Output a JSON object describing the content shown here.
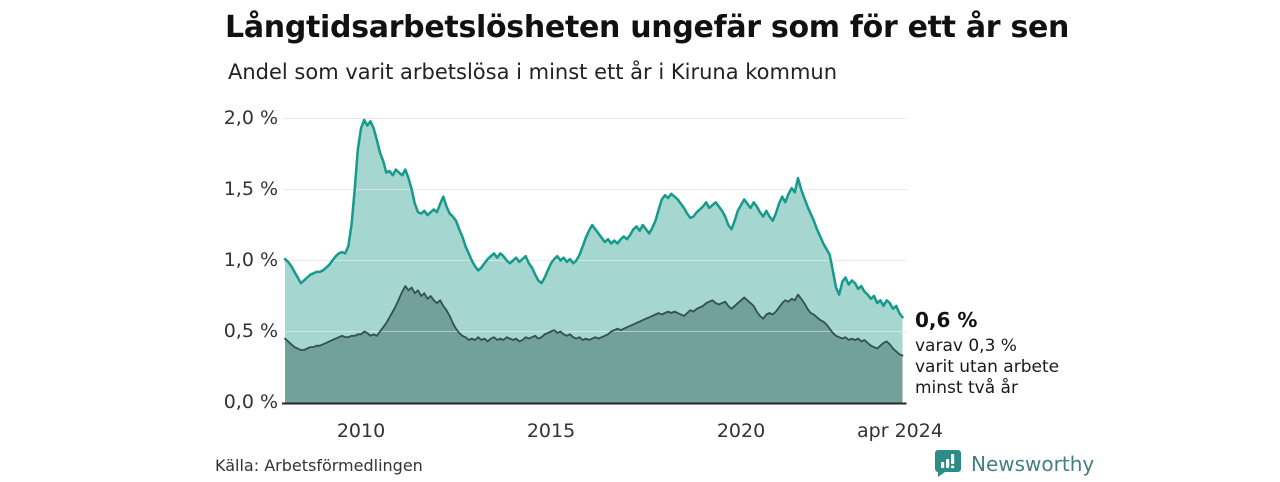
{
  "page": {
    "title": "Långtidsarbetslösheten ungefär som för ett år sen",
    "subtitle": "Andel som varit arbetslösa i minst ett år i Kiruna kommun",
    "source": "Källa: Arbetsförmedlingen",
    "brand": "Newsworthy"
  },
  "annotation": {
    "headline": "0,6 %",
    "line1": "varav 0,3 %",
    "line2": "varit utan arbete",
    "line3": "minst två år"
  },
  "colors": {
    "line_total": "#159a8c",
    "fill_total": "#a6d6d0",
    "line_two_year": "#33514d",
    "fill_two_year": "#72a09a",
    "gridline": "#d8d8d8",
    "baseline": "#262626",
    "brand_teal": "#2e8c86"
  },
  "chart_data": {
    "type": "area",
    "title": "Långtidsarbetslösheten ungefär som för ett år sen",
    "subtitle": "Andel som varit arbetslösa i minst ett år i Kiruna kommun",
    "unit": "%",
    "grid": true,
    "legend_position": "none",
    "x_start": 2008.0,
    "points_per_year": 12,
    "ylim": [
      0,
      2.0
    ],
    "y_ticks": [
      2.0,
      1.5,
      1.0,
      0.5,
      0.0
    ],
    "y_tick_labels": [
      "2,0 %",
      "1,5 %",
      "1,0 %",
      "0,5 %",
      "0,0 %"
    ],
    "x_ticks": [
      {
        "value": 2010,
        "label": "2010"
      },
      {
        "value": 2015,
        "label": "2015"
      },
      {
        "value": 2020,
        "label": "2020"
      },
      {
        "value": 2024.25,
        "label": "apr 2024"
      }
    ],
    "last_point_labels": {
      "total": "0,6 %",
      "two_year": "varav 0,3 % varit utan arbete minst två år"
    },
    "series": [
      {
        "name": "Arbetslösa minst ett år",
        "stroke": "#159a8c",
        "fill": "#a6d6d0",
        "stroke_width": 2.5,
        "values": [
          1.01,
          0.99,
          0.96,
          0.92,
          0.88,
          0.84,
          0.86,
          0.88,
          0.9,
          0.91,
          0.92,
          0.92,
          0.93,
          0.95,
          0.97,
          1.0,
          1.03,
          1.05,
          1.06,
          1.05,
          1.1,
          1.25,
          1.5,
          1.78,
          1.93,
          1.99,
          1.95,
          1.98,
          1.93,
          1.85,
          1.76,
          1.7,
          1.62,
          1.63,
          1.6,
          1.64,
          1.62,
          1.6,
          1.64,
          1.58,
          1.5,
          1.4,
          1.34,
          1.33,
          1.35,
          1.32,
          1.34,
          1.36,
          1.34,
          1.4,
          1.45,
          1.38,
          1.33,
          1.31,
          1.28,
          1.22,
          1.17,
          1.1,
          1.05,
          1.0,
          0.96,
          0.93,
          0.95,
          0.98,
          1.01,
          1.03,
          1.05,
          1.02,
          1.05,
          1.03,
          1.0,
          0.98,
          1.0,
          1.02,
          0.99,
          1.01,
          1.03,
          0.98,
          0.95,
          0.9,
          0.86,
          0.84,
          0.88,
          0.93,
          0.98,
          1.01,
          1.03,
          1.0,
          1.02,
          0.99,
          1.01,
          0.98,
          1.0,
          1.04,
          1.1,
          1.16,
          1.21,
          1.25,
          1.22,
          1.19,
          1.16,
          1.13,
          1.15,
          1.12,
          1.14,
          1.12,
          1.15,
          1.17,
          1.15,
          1.18,
          1.22,
          1.24,
          1.21,
          1.25,
          1.22,
          1.19,
          1.23,
          1.28,
          1.36,
          1.43,
          1.46,
          1.44,
          1.47,
          1.45,
          1.43,
          1.4,
          1.37,
          1.33,
          1.3,
          1.31,
          1.34,
          1.36,
          1.38,
          1.41,
          1.37,
          1.39,
          1.41,
          1.38,
          1.35,
          1.31,
          1.25,
          1.22,
          1.28,
          1.35,
          1.39,
          1.43,
          1.4,
          1.37,
          1.41,
          1.38,
          1.34,
          1.31,
          1.35,
          1.31,
          1.28,
          1.33,
          1.4,
          1.45,
          1.41,
          1.47,
          1.51,
          1.48,
          1.58,
          1.5,
          1.44,
          1.38,
          1.33,
          1.28,
          1.22,
          1.17,
          1.12,
          1.08,
          1.04,
          0.93,
          0.81,
          0.76,
          0.85,
          0.88,
          0.83,
          0.86,
          0.84,
          0.8,
          0.82,
          0.78,
          0.76,
          0.73,
          0.75,
          0.7,
          0.72,
          0.68,
          0.72,
          0.7,
          0.66,
          0.68,
          0.63,
          0.6
        ]
      },
      {
        "name": "Utan arbete minst två år",
        "stroke": "#33514d",
        "fill": "#72a09a",
        "stroke_width": 1.8,
        "values": [
          0.45,
          0.43,
          0.41,
          0.39,
          0.38,
          0.37,
          0.37,
          0.38,
          0.39,
          0.39,
          0.4,
          0.4,
          0.41,
          0.42,
          0.43,
          0.44,
          0.45,
          0.46,
          0.47,
          0.46,
          0.46,
          0.47,
          0.47,
          0.48,
          0.48,
          0.5,
          0.49,
          0.47,
          0.48,
          0.47,
          0.5,
          0.53,
          0.56,
          0.6,
          0.64,
          0.68,
          0.73,
          0.78,
          0.82,
          0.79,
          0.81,
          0.77,
          0.79,
          0.75,
          0.77,
          0.73,
          0.75,
          0.72,
          0.7,
          0.72,
          0.68,
          0.65,
          0.61,
          0.56,
          0.52,
          0.49,
          0.47,
          0.46,
          0.44,
          0.45,
          0.44,
          0.46,
          0.44,
          0.45,
          0.43,
          0.45,
          0.46,
          0.44,
          0.45,
          0.44,
          0.46,
          0.45,
          0.44,
          0.45,
          0.43,
          0.44,
          0.46,
          0.45,
          0.46,
          0.47,
          0.45,
          0.46,
          0.48,
          0.49,
          0.5,
          0.51,
          0.49,
          0.5,
          0.48,
          0.47,
          0.48,
          0.46,
          0.45,
          0.46,
          0.44,
          0.45,
          0.44,
          0.45,
          0.46,
          0.45,
          0.46,
          0.47,
          0.48,
          0.5,
          0.51,
          0.52,
          0.51,
          0.52,
          0.53,
          0.54,
          0.55,
          0.56,
          0.57,
          0.58,
          0.59,
          0.6,
          0.61,
          0.62,
          0.63,
          0.62,
          0.63,
          0.64,
          0.63,
          0.64,
          0.63,
          0.62,
          0.61,
          0.63,
          0.65,
          0.64,
          0.66,
          0.67,
          0.68,
          0.7,
          0.71,
          0.72,
          0.7,
          0.69,
          0.7,
          0.71,
          0.68,
          0.66,
          0.68,
          0.7,
          0.72,
          0.74,
          0.72,
          0.7,
          0.68,
          0.64,
          0.61,
          0.59,
          0.62,
          0.63,
          0.62,
          0.64,
          0.67,
          0.7,
          0.72,
          0.71,
          0.73,
          0.72,
          0.76,
          0.73,
          0.7,
          0.66,
          0.63,
          0.62,
          0.6,
          0.58,
          0.57,
          0.55,
          0.52,
          0.49,
          0.47,
          0.46,
          0.45,
          0.46,
          0.44,
          0.45,
          0.44,
          0.45,
          0.43,
          0.44,
          0.42,
          0.4,
          0.39,
          0.38,
          0.4,
          0.42,
          0.43,
          0.41,
          0.38,
          0.36,
          0.34,
          0.33
        ]
      }
    ]
  }
}
